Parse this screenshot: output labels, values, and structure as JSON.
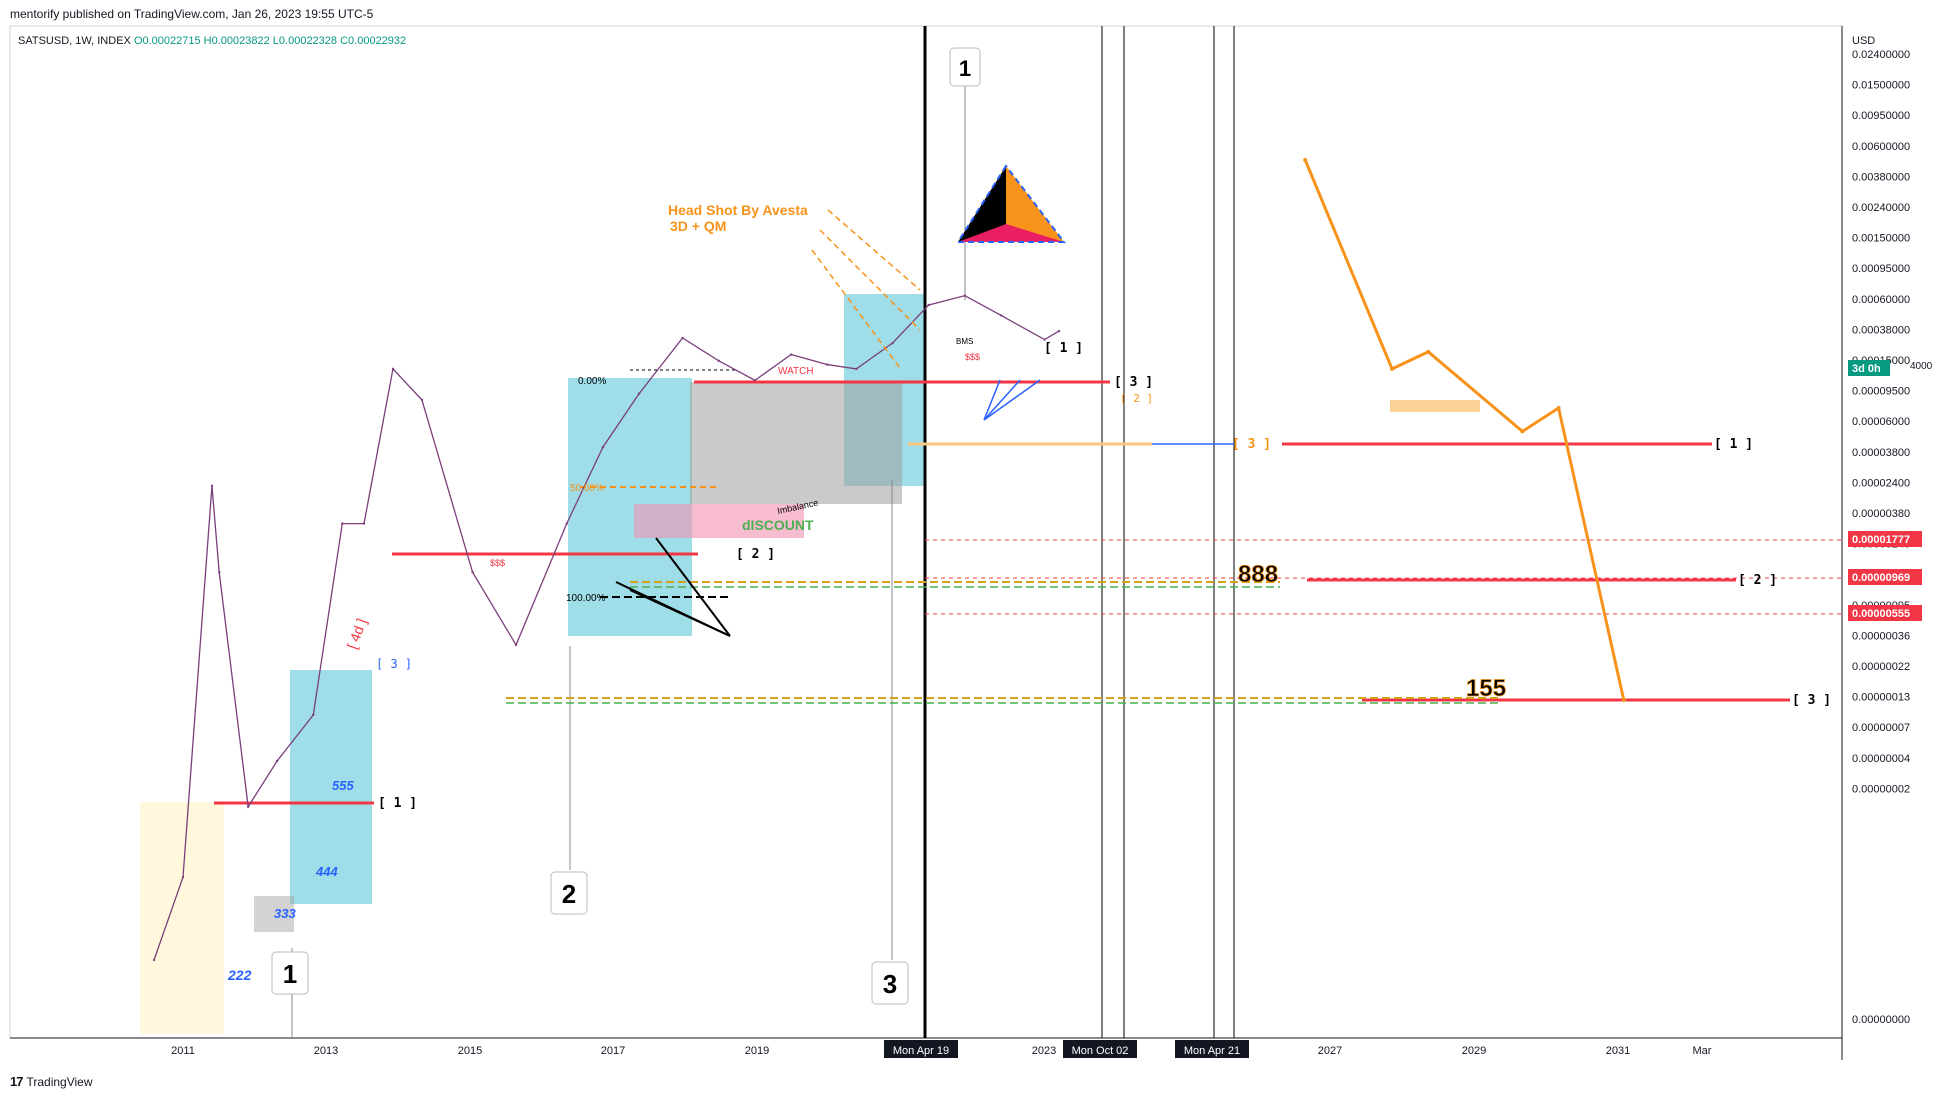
{
  "header": {
    "published": "mentorify published on TradingView.com, Jan 26, 2023 19:55 UTC-5",
    "symbol": "SATSUSD, 1W, INDEX",
    "ohlc": {
      "O": "O0.00022715",
      "H": "H0.00023822",
      "L": "L0.00022328",
      "C": "C0.00022932"
    }
  },
  "footer": {
    "brand": "TradingView",
    "logo": "17"
  },
  "chart_data": {
    "type": "line",
    "title": "",
    "xlabel": "",
    "ylabel": "",
    "currency": "USD",
    "y_scale": "log",
    "x_ticks": [
      "2011",
      "2013",
      "2015",
      "2017",
      "2019",
      "2023",
      "2027",
      "2029",
      "2031",
      "Mar"
    ],
    "time_markers": [
      "Mon Apr 19",
      "Mon Oct 02",
      "Mon Apr 21"
    ],
    "y_ticks": [
      "0.02400000",
      "0.01500000",
      "0.00950000",
      "0.00600000",
      "0.00380000",
      "0.00240000",
      "0.00150000",
      "0.00095000",
      "0.00060000",
      "0.00038000",
      "0.00015000",
      "0.00009500",
      "0.00006000",
      "0.00003800",
      "0.00002400",
      "0.00000380",
      "0.00000240",
      "0.00000150",
      "0.00000095",
      "0.00000036",
      "0.00000022",
      "0.00000013",
      "0.00000007",
      "0.00000004",
      "0.00000002",
      "0.00000000"
    ],
    "price_badges": [
      {
        "label": "3d 0h",
        "color": "#089981"
      },
      {
        "label": "0.00001777",
        "color": "#f23645"
      },
      {
        "label": "0.00000969",
        "color": "#f23645"
      },
      {
        "label": "0.00000555",
        "color": "#f23645"
      }
    ],
    "cut_tick": "4000",
    "series": [
      {
        "values_desc": "weekly close path (log scale)",
        "x": [
          2010.6,
          2011.0,
          2011.4,
          2011.5,
          2011.9,
          2012.3,
          2012.8,
          2013.2,
          2013.5,
          2013.9,
          2014.3,
          2015.0,
          2015.6,
          2016.3,
          2016.8,
          2017.3,
          2017.9,
          2018.4,
          2018.9,
          2019.4,
          2019.9,
          2020.3,
          2020.8,
          2021.3,
          2021.8,
          2022.3,
          2022.9,
          2023.1
        ],
        "y": [
          2e-08,
          1e-07,
          5e-06,
          3e-06,
          3e-07,
          6e-07,
          1.2e-06,
          4e-06,
          4e-06,
          6e-05,
          2e-05,
          3e-06,
          2e-06,
          4e-06,
          7e-06,
          2.5e-05,
          0.00018,
          8e-05,
          4e-05,
          0.0001,
          7e-05,
          6e-05,
          0.00015,
          0.00058,
          0.00068,
          0.0004,
          0.00017,
          0.00023
        ]
      }
    ],
    "projection": {
      "color": "#f7931a",
      "points": [
        [
          2026.5,
          0.0052
        ],
        [
          2027.7,
          6e-05
        ],
        [
          2028.2,
          0.00011
        ],
        [
          2029.5,
          9.5e-06
        ],
        [
          2030.0,
          1.5e-05
        ],
        [
          2030.9,
          1.5e-06
        ]
      ]
    },
    "annotations": {
      "title_text": "Head Shot By Avesta",
      "subtitle_text": "3D  +  QM",
      "watch": "WATCH",
      "discount": "dISCOUNT",
      "imbalance": "Imbalance",
      "bms": "BMS",
      "fib": [
        "0.00%",
        "50.00%",
        "100.00%"
      ],
      "numbers": [
        "222",
        "333",
        "444",
        "555",
        "888",
        "155"
      ],
      "counts": [
        "1",
        "2",
        "3",
        "1"
      ],
      "brackets": [
        "[ 1 ]",
        "[ 2 ]",
        "[ 3 ]",
        "[ 1 ]",
        "[ 3 ]",
        "[ 2 ]",
        "[ 3 ]",
        "[ 1 ]",
        "[ 2 ]",
        "[ 3 ]"
      ],
      "liq": "$$$",
      "four_d": "[ 4d ]"
    }
  }
}
